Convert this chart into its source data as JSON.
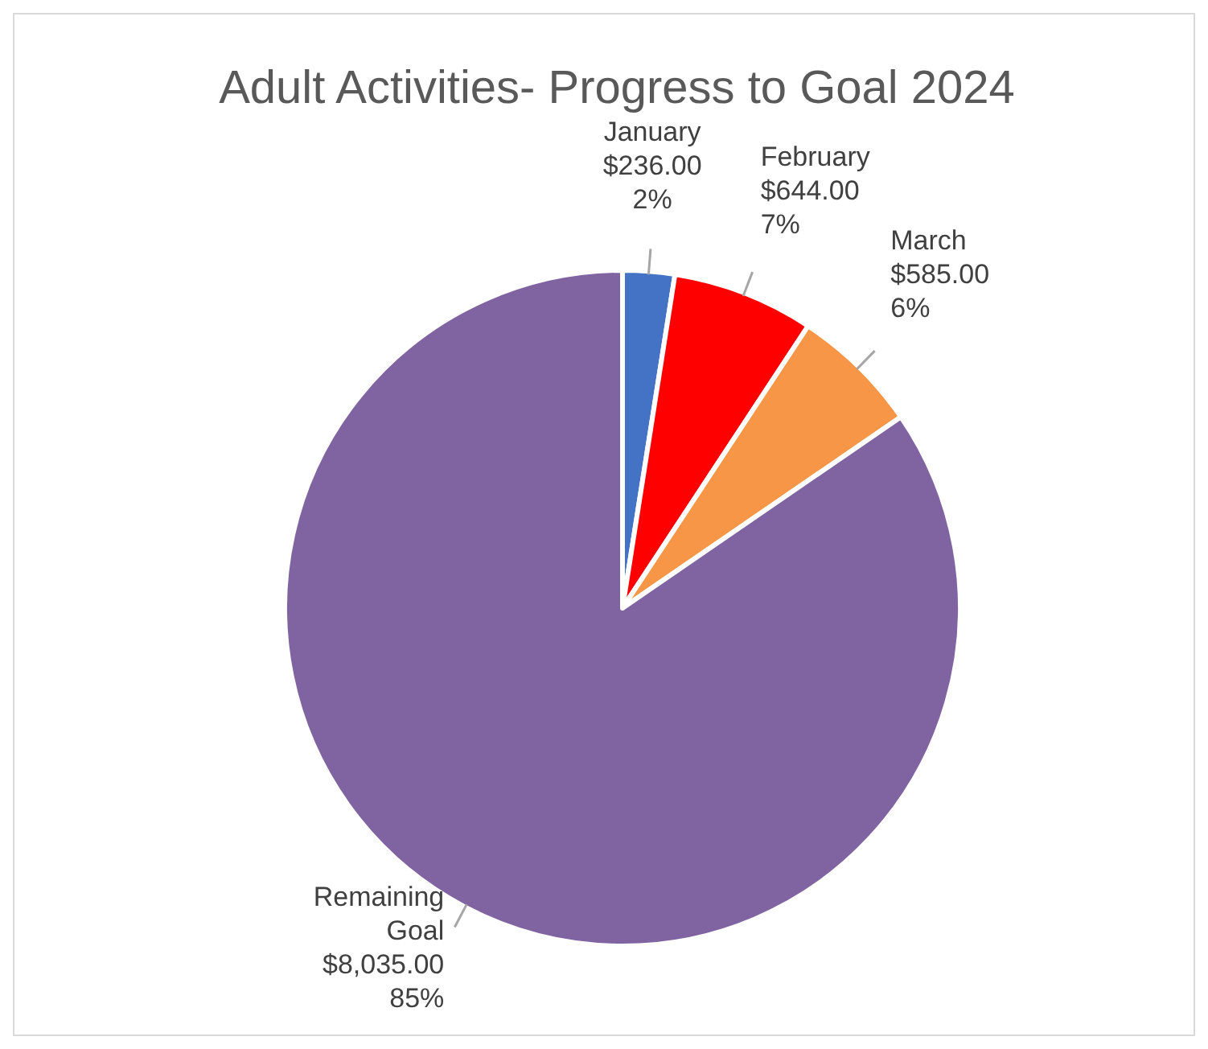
{
  "chart_data": {
    "type": "pie",
    "title": "Adult Activities- Progress to Goal 2024",
    "categories": [
      "January",
      "February",
      "March",
      "Remaining Goal"
    ],
    "values": [
      236,
      644,
      585,
      8035
    ],
    "colors": [
      "#4472c4",
      "#ff0000",
      "#f79646",
      "#8064a2"
    ],
    "value_labels": [
      "$236.00\n2%",
      "$644.00\n7%",
      "$585.00\n6%",
      "$8,035.00\n85%"
    ]
  }
}
